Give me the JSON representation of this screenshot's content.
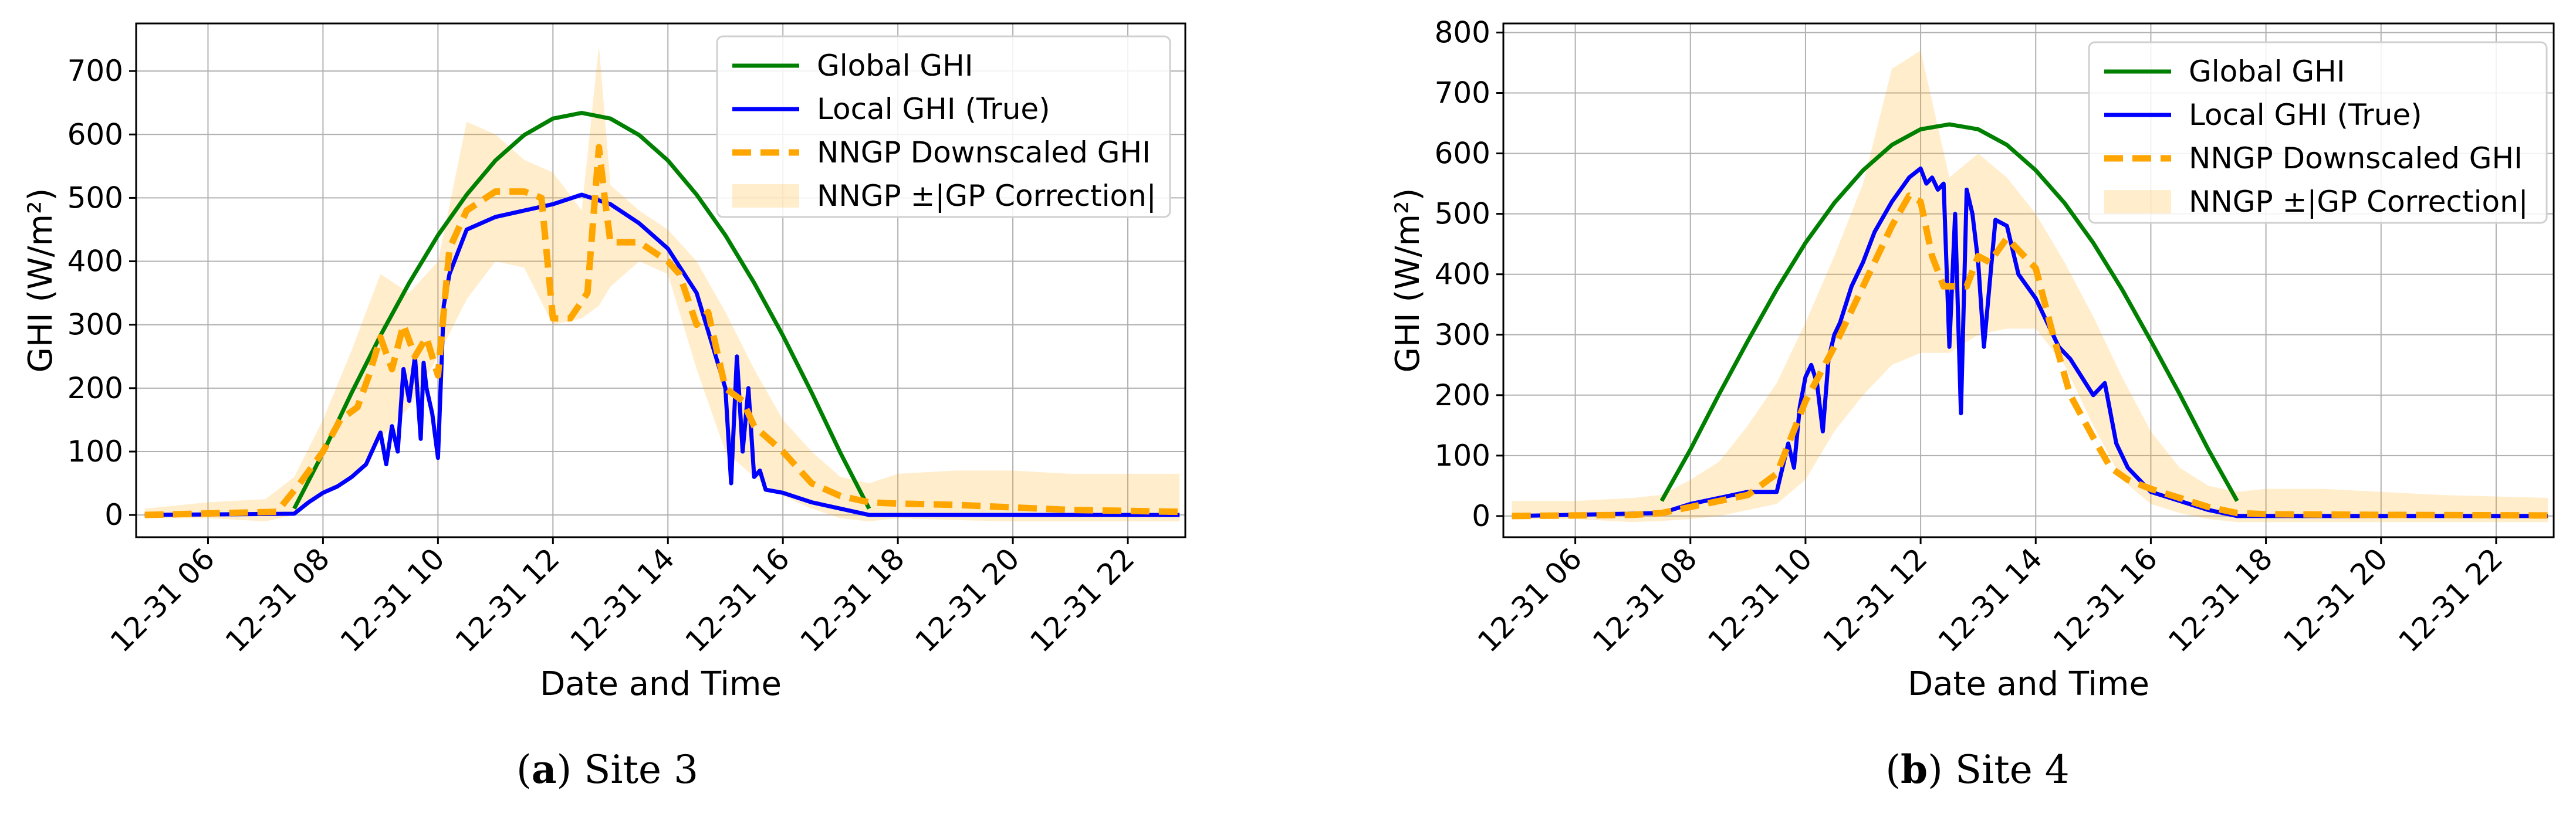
{
  "chart_data": [
    {
      "type": "line",
      "caption": {
        "letter": "a",
        "text": "Site 3"
      },
      "xlabel": "Date and Time",
      "ylabel": "GHI (W/m²)",
      "xlim": [
        4.75,
        23.0
      ],
      "ylim": [
        -35,
        775
      ],
      "x_ticks": [
        6,
        8,
        10,
        12,
        14,
        16,
        18,
        20,
        22
      ],
      "x_tick_labels": [
        "12-31 06",
        "12-31 08",
        "12-31 10",
        "12-31 12",
        "12-31 14",
        "12-31 16",
        "12-31 18",
        "12-31 20",
        "12-31 22"
      ],
      "y_ticks": [
        0,
        100,
        200,
        300,
        400,
        500,
        600,
        700
      ],
      "y_tick_labels": [
        "0",
        "100",
        "200",
        "300",
        "400",
        "500",
        "600",
        "700"
      ],
      "grid": true,
      "legend_position": "top-right",
      "series": [
        {
          "name": "Global GHI",
          "color": "#008000",
          "style": "solid",
          "x": [
            7.5,
            8.0,
            8.5,
            9.0,
            9.5,
            10.0,
            10.5,
            11.0,
            11.5,
            12.0,
            12.5,
            13.0,
            13.5,
            14.0,
            14.5,
            15.0,
            15.5,
            16.0,
            16.5,
            17.0,
            17.5
          ],
          "y": [
            10,
            98,
            193,
            283,
            366,
            441,
            505,
            559,
            599,
            625,
            634,
            625,
            599,
            559,
            505,
            441,
            366,
            283,
            193,
            98,
            10
          ]
        },
        {
          "name": "Local GHI (True)",
          "color": "#0000ff",
          "style": "solid",
          "x": [
            4.9,
            7.5,
            7.75,
            8.0,
            8.25,
            8.5,
            8.75,
            9.0,
            9.1,
            9.2,
            9.3,
            9.4,
            9.5,
            9.6,
            9.7,
            9.75,
            9.8,
            9.9,
            10.0,
            10.1,
            10.2,
            10.5,
            11.0,
            11.5,
            12.0,
            12.5,
            13.0,
            13.5,
            14.0,
            14.5,
            15.0,
            15.1,
            15.2,
            15.3,
            15.4,
            15.5,
            15.6,
            15.7,
            16.0,
            16.5,
            17.0,
            17.5,
            22.9
          ],
          "y": [
            0,
            2,
            20,
            35,
            45,
            60,
            80,
            130,
            80,
            140,
            100,
            230,
            180,
            250,
            120,
            240,
            200,
            160,
            90,
            330,
            380,
            450,
            470,
            480,
            490,
            505,
            490,
            460,
            420,
            350,
            200,
            50,
            250,
            100,
            200,
            60,
            70,
            40,
            35,
            20,
            10,
            0,
            0
          ]
        },
        {
          "name": "NNGP Downscaled GHI",
          "color": "#ffa500",
          "style": "dashed",
          "x": [
            4.9,
            7.2,
            7.6,
            8.0,
            8.3,
            8.6,
            8.8,
            9.0,
            9.2,
            9.4,
            9.6,
            9.8,
            10.0,
            10.2,
            10.5,
            11.0,
            11.5,
            11.8,
            12.0,
            12.3,
            12.6,
            12.8,
            12.9,
            13.0,
            13.5,
            14.0,
            14.2,
            14.5,
            14.7,
            15.0,
            15.3,
            15.5,
            16.0,
            16.5,
            17.0,
            17.5,
            18.0,
            19.0,
            20.0,
            21.0,
            22.9
          ],
          "y": [
            0,
            5,
            50,
            100,
            150,
            170,
            220,
            280,
            230,
            300,
            250,
            280,
            220,
            420,
            480,
            510,
            510,
            500,
            310,
            310,
            350,
            580,
            500,
            430,
            430,
            400,
            380,
            300,
            320,
            200,
            180,
            140,
            100,
            50,
            30,
            20,
            18,
            16,
            12,
            8,
            5
          ]
        },
        {
          "name": "NNGP ±|GP Correction|",
          "color": "#ffa500",
          "style": "band",
          "opacity": 0.2,
          "x": [
            4.9,
            6.0,
            7.0,
            7.5,
            8.0,
            8.5,
            9.0,
            9.5,
            10.0,
            10.5,
            11.0,
            11.5,
            12.0,
            12.5,
            12.8,
            13.0,
            13.5,
            14.0,
            14.5,
            15.0,
            15.5,
            16.0,
            16.5,
            17.0,
            17.5,
            18.0,
            19.0,
            20.0,
            21.0,
            22.9
          ],
          "y_lower": [
            -5,
            -5,
            -10,
            0,
            30,
            60,
            120,
            170,
            250,
            340,
            400,
            390,
            300,
            310,
            330,
            360,
            400,
            380,
            230,
            100,
            60,
            30,
            10,
            -5,
            -10,
            -5,
            -8,
            -10,
            -10,
            -10
          ],
          "y_upper": [
            10,
            20,
            25,
            60,
            150,
            260,
            380,
            350,
            400,
            620,
            600,
            560,
            540,
            480,
            740,
            520,
            480,
            450,
            400,
            320,
            230,
            150,
            100,
            60,
            50,
            65,
            70,
            70,
            65,
            65
          ]
        }
      ]
    },
    {
      "type": "line",
      "caption": {
        "letter": "b",
        "text": "Site 4"
      },
      "xlabel": "Date and Time",
      "ylabel": "GHI (W/m²)",
      "xlim": [
        4.75,
        23.0
      ],
      "ylim": [
        -35,
        815
      ],
      "x_ticks": [
        6,
        8,
        10,
        12,
        14,
        16,
        18,
        20,
        22
      ],
      "x_tick_labels": [
        "12-31 06",
        "12-31 08",
        "12-31 10",
        "12-31 12",
        "12-31 14",
        "12-31 16",
        "12-31 18",
        "12-31 20",
        "12-31 22"
      ],
      "y_ticks": [
        0,
        100,
        200,
        300,
        400,
        500,
        600,
        700,
        800
      ],
      "y_tick_labels": [
        "0",
        "100",
        "200",
        "300",
        "400",
        "500",
        "600",
        "700",
        "800"
      ],
      "grid": true,
      "legend_position": "top-right",
      "series": [
        {
          "name": "Global GHI",
          "color": "#008000",
          "style": "solid",
          "x": [
            7.5,
            8.0,
            8.5,
            9.0,
            9.5,
            10.0,
            10.5,
            11.0,
            11.5,
            12.0,
            12.5,
            13.0,
            13.5,
            14.0,
            14.5,
            15.0,
            15.5,
            16.0,
            16.5,
            17.0,
            17.5
          ],
          "y": [
            25,
            110,
            202,
            290,
            375,
            452,
            518,
            572,
            614,
            640,
            648,
            640,
            614,
            572,
            518,
            452,
            375,
            290,
            202,
            110,
            25
          ]
        },
        {
          "name": "Local GHI (True)",
          "color": "#0000ff",
          "style": "solid",
          "x": [
            4.9,
            7.5,
            8.0,
            8.5,
            9.0,
            9.5,
            9.7,
            9.8,
            9.9,
            10.0,
            10.1,
            10.2,
            10.3,
            10.4,
            10.5,
            10.6,
            10.8,
            11.0,
            11.2,
            11.5,
            11.8,
            12.0,
            12.1,
            12.2,
            12.3,
            12.4,
            12.5,
            12.6,
            12.7,
            12.8,
            12.9,
            13.0,
            13.1,
            13.3,
            13.5,
            13.7,
            14.0,
            14.2,
            14.4,
            14.6,
            14.8,
            15.0,
            15.2,
            15.4,
            15.6,
            15.8,
            16.0,
            16.5,
            17.0,
            17.5,
            22.9
          ],
          "y": [
            0,
            5,
            20,
            30,
            40,
            40,
            120,
            80,
            180,
            230,
            250,
            220,
            140,
            260,
            300,
            320,
            380,
            420,
            470,
            520,
            560,
            575,
            550,
            560,
            540,
            550,
            280,
            500,
            170,
            540,
            500,
            420,
            280,
            490,
            480,
            400,
            360,
            320,
            280,
            260,
            230,
            200,
            220,
            120,
            80,
            60,
            40,
            25,
            10,
            0,
            0
          ]
        },
        {
          "name": "NNGP Downscaled GHI",
          "color": "#ffa500",
          "style": "dashed",
          "x": [
            4.9,
            7.0,
            7.5,
            8.0,
            8.5,
            9.0,
            9.5,
            10.0,
            10.5,
            11.0,
            11.5,
            11.8,
            12.0,
            12.2,
            12.4,
            12.8,
            13.0,
            13.2,
            13.5,
            14.0,
            14.3,
            14.6,
            15.0,
            15.3,
            15.6,
            16.0,
            16.5,
            17.0,
            17.5,
            18.0,
            20.0,
            22.9
          ],
          "y": [
            0,
            2,
            5,
            15,
            25,
            35,
            70,
            190,
            280,
            380,
            480,
            530,
            520,
            430,
            380,
            380,
            430,
            420,
            460,
            410,
            300,
            200,
            130,
            80,
            60,
            45,
            30,
            15,
            5,
            3,
            2,
            1
          ]
        },
        {
          "name": "NNGP ±|GP Correction|",
          "color": "#ffa500",
          "style": "band",
          "opacity": 0.2,
          "x": [
            4.9,
            6.0,
            7.0,
            7.5,
            8.0,
            8.5,
            9.0,
            9.5,
            10.0,
            10.5,
            11.0,
            11.5,
            12.0,
            12.5,
            13.0,
            13.5,
            14.0,
            14.5,
            15.0,
            15.5,
            16.0,
            16.5,
            17.0,
            17.5,
            18.0,
            19.0,
            20.0,
            21.0,
            22.9
          ],
          "y_lower": [
            -5,
            -5,
            -10,
            -8,
            -5,
            0,
            10,
            20,
            60,
            140,
            200,
            250,
            270,
            270,
            300,
            310,
            310,
            250,
            150,
            60,
            20,
            5,
            -5,
            -10,
            -10,
            -10,
            -10,
            -10,
            -10
          ],
          "y_upper": [
            25,
            25,
            30,
            35,
            60,
            90,
            150,
            220,
            320,
            430,
            550,
            740,
            770,
            560,
            600,
            560,
            500,
            420,
            330,
            230,
            140,
            80,
            50,
            40,
            45,
            45,
            40,
            35,
            30
          ]
        }
      ]
    }
  ]
}
